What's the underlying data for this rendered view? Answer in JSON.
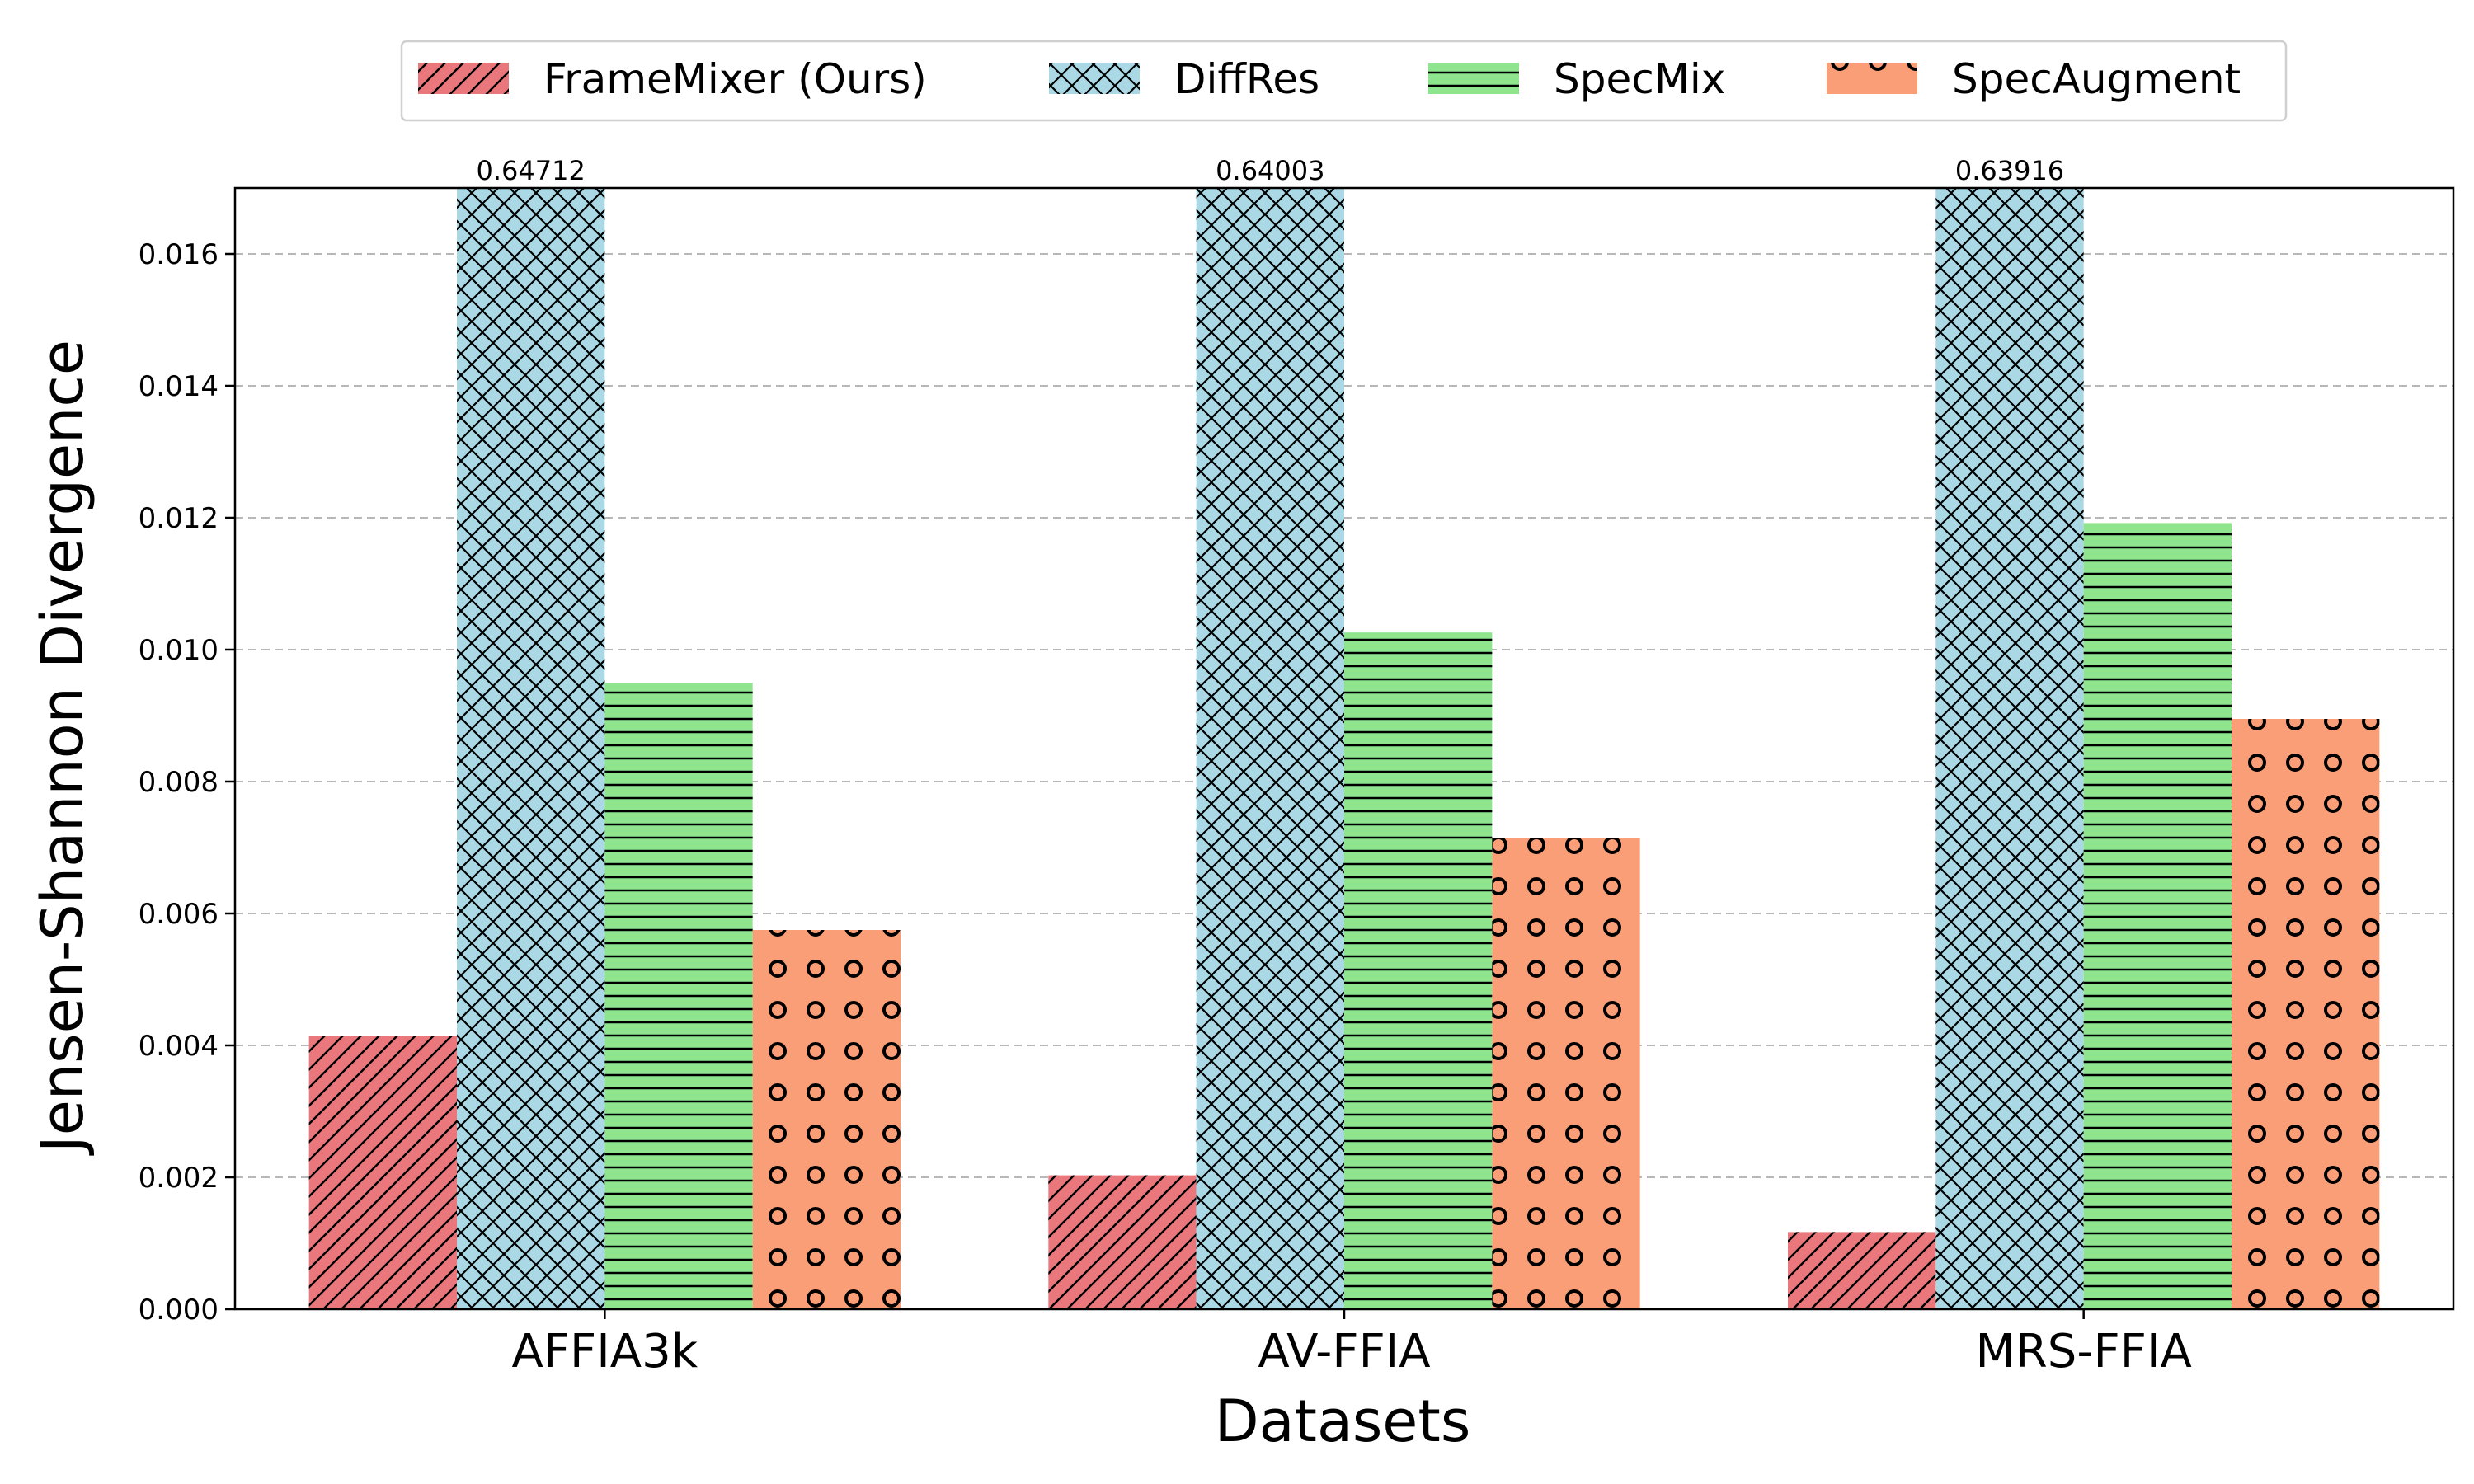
{
  "chart_data": {
    "type": "bar",
    "xlabel": "Datasets",
    "ylabel": "Jensen-Shannon Divergence",
    "categories": [
      "AFFIA3k",
      "AV-FFIA",
      "MRS-FFIA"
    ],
    "ylim": [
      0,
      0.017
    ],
    "yticks": [
      "0.000",
      "0.002",
      "0.004",
      "0.006",
      "0.008",
      "0.010",
      "0.012",
      "0.014",
      "0.016"
    ],
    "grid": "horizontal dashed",
    "legend_position": "top-center, above plot, 4 columns",
    "series": [
      {
        "name": "FrameMixer (Ours)",
        "values": [
          0.00415,
          0.00203,
          0.00117
        ],
        "color": "#ea777b",
        "pattern": "diagonal-hatch"
      },
      {
        "name": "DiffRes",
        "values": [
          0.64712,
          0.64003,
          0.63916
        ],
        "color": "#aad8e4",
        "pattern": "cross-hatch",
        "clipped": true,
        "labels": [
          "0.64712",
          "0.64003",
          "0.63916"
        ]
      },
      {
        "name": "SpecMix",
        "values": [
          0.0095,
          0.01026,
          0.01192
        ],
        "color": "#8ee58e",
        "pattern": "horizontal-lines"
      },
      {
        "name": "SpecAugment",
        "values": [
          0.00575,
          0.00715,
          0.00895
        ],
        "color": "#fa9e78",
        "pattern": "circles"
      }
    ]
  }
}
